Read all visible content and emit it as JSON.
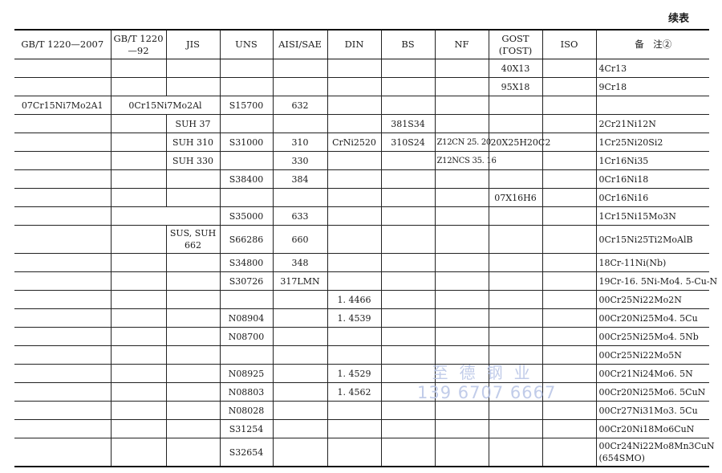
{
  "continued_label": "续表",
  "headers": [
    "GB/T 1220—2007",
    "GB/T 1220—92",
    "JIS",
    "UNS",
    "AISI/SAE",
    "DIN",
    "BS",
    "NF",
    "GOST (ГOST)",
    "ISO",
    "备　注②"
  ],
  "rows": [
    {
      "cells": [
        "",
        "",
        "",
        "",
        "",
        "",
        "",
        "",
        "40X13",
        "",
        "4Cr13"
      ]
    },
    {
      "cells": [
        "",
        "",
        "",
        "",
        "",
        "",
        "",
        "",
        "95X18",
        "",
        "9Cr18"
      ]
    },
    {
      "cells": [
        "07Cr15Ni7Mo2A1",
        "0Cr15Ni7Mo2Al",
        "S15700",
        "632",
        "",
        "",
        "",
        "",
        "",
        ""
      ],
      "merge": 1
    },
    {
      "cells": [
        "",
        "",
        "SUH 37",
        "",
        "",
        "",
        "381S34",
        "",
        "",
        "",
        "2Cr21Ni12N"
      ]
    },
    {
      "cells": [
        "",
        "",
        "SUH 310",
        "S31000",
        "310",
        "CrNi2520",
        "310S24",
        "Z12CN 25. 20",
        "20X25H20C2",
        "",
        "1Cr25Ni20Si2"
      ]
    },
    {
      "cells": [
        "",
        "",
        "SUH 330",
        "",
        "330",
        "",
        "",
        "Z12NCS 35. 16",
        "",
        "",
        "1Cr16Ni35"
      ]
    },
    {
      "cells": [
        "",
        "",
        "",
        "S38400",
        "384",
        "",
        "",
        "",
        "",
        "",
        "0Cr16Ni18"
      ]
    },
    {
      "cells": [
        "",
        "",
        "",
        "",
        "",
        "",
        "",
        "",
        "07X16H6",
        "",
        "0Cr16Ni16"
      ]
    },
    {
      "cells": [
        "",
        "",
        "S35000",
        "633",
        "",
        "",
        "",
        "",
        "",
        "1Cr15Ni15Mo3N"
      ],
      "merge": 1
    },
    {
      "cells": [
        "",
        "",
        "SUS, SUH 662",
        "S66286",
        "660",
        "",
        "",
        "",
        "",
        "",
        "0Cr15Ni25Ti2MoAlB"
      ],
      "tall": true
    },
    {
      "cells": [
        "",
        "",
        "",
        "S34800",
        "348",
        "",
        "",
        "",
        "",
        "",
        "18Cr-11Ni(Nb)"
      ]
    },
    {
      "cells": [
        "",
        "",
        "",
        "S30726",
        "317LMN",
        "",
        "",
        "",
        "",
        "",
        "19Cr-16. 5Ni-Mo4. 5-Cu-N"
      ]
    },
    {
      "cells": [
        "",
        "",
        "",
        "",
        "",
        "1. 4466",
        "",
        "",
        "",
        "",
        "00Cr25Ni22Mo2N"
      ]
    },
    {
      "cells": [
        "",
        "",
        "",
        "N08904",
        "",
        "1. 4539",
        "",
        "",
        "",
        "",
        "00Cr20Ni25Mo4. 5Cu"
      ]
    },
    {
      "cells": [
        "",
        "",
        "",
        "N08700",
        "",
        "",
        "",
        "",
        "",
        "",
        "00Cr25Ni25Mo4. 5Nb"
      ]
    },
    {
      "cells": [
        "",
        "",
        "",
        "",
        "",
        "",
        "",
        "",
        "",
        "",
        "00Cr25Ni22Mo5N"
      ]
    },
    {
      "cells": [
        "",
        "",
        "",
        "N08925",
        "",
        "1. 4529",
        "",
        "",
        "",
        "",
        "00Cr21Ni24Mo6. 5N"
      ]
    },
    {
      "cells": [
        "",
        "",
        "",
        "N08803",
        "",
        "1. 4562",
        "",
        "",
        "",
        "",
        "00Cr20Ni25Mo6. 5CuN"
      ]
    },
    {
      "cells": [
        "",
        "",
        "",
        "N08028",
        "",
        "",
        "",
        "",
        "",
        "",
        "00Cr27Ni31Mo3. 5Cu"
      ]
    },
    {
      "cells": [
        "",
        "",
        "",
        "S31254",
        "",
        "",
        "",
        "",
        "",
        "",
        "00Cr20Ni18Mo6CuN"
      ]
    },
    {
      "cells": [
        "",
        "",
        "",
        "S32654",
        "",
        "",
        "",
        "",
        "",
        "",
        "00Cr24Ni22Mo8Mn3CuN (654SMO)"
      ],
      "tall": true
    }
  ],
  "watermark": {
    "line1": "至德钢业",
    "line2": "139 6707 6667"
  },
  "colors": {
    "rule": "#222222",
    "watermark": "#b7c4e6"
  }
}
